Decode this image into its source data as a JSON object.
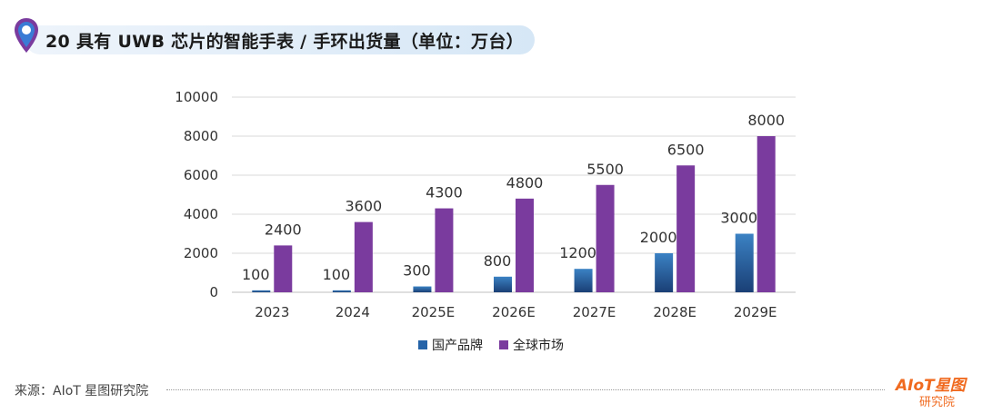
{
  "header": {
    "title": "20 具有 UWB 芯片的智能手表 / 手环出货量（单位：万台）"
  },
  "colors": {
    "domestic": "#2563a8",
    "global": "#7a3b9e",
    "accent_orange": "#f06a1f"
  },
  "chart_data": {
    "type": "bar",
    "title": "20 具有 UWB 芯片的智能手表 / 手环出货量（单位：万台）",
    "xlabel": "",
    "ylabel": "",
    "categories": [
      "2023",
      "2024",
      "2025E",
      "2026E",
      "2027E",
      "2028E",
      "2029E"
    ],
    "series": [
      {
        "name": "国产品牌",
        "values": [
          100,
          100,
          300,
          800,
          1200,
          2000,
          3000
        ]
      },
      {
        "name": "全球市场",
        "values": [
          2400,
          3600,
          4300,
          4800,
          5500,
          6500,
          8000
        ]
      }
    ],
    "ylim": [
      0,
      10000
    ],
    "yticks": [
      0,
      2000,
      4000,
      6000,
      8000,
      10000
    ],
    "grid": true,
    "legend_position": "bottom"
  },
  "legend": {
    "items": [
      "国产品牌",
      "全球市场"
    ]
  },
  "footer": {
    "source": "来源：AIoT 星图研究院",
    "logo_main": "AIoT星图",
    "logo_sub": "研究院"
  }
}
